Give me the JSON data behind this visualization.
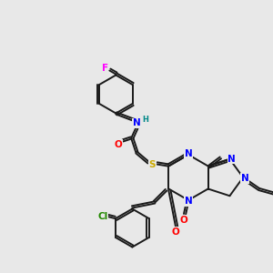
{
  "background_color": "#e8e8e8",
  "bond_color": "#1a1a1a",
  "atom_colors": {
    "F": "#ff00ff",
    "Cl": "#228800",
    "N": "#0000ff",
    "O": "#ff0000",
    "S": "#ccaa00",
    "H": "#008888",
    "C": "#1a1a1a"
  },
  "figsize": [
    3.0,
    3.0
  ],
  "dpi": 100
}
